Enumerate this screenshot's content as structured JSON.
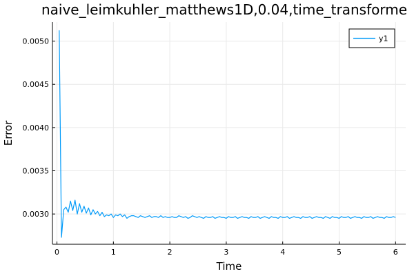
{
  "chart_data": {
    "type": "line",
    "title": "naive_leimkuhler_matthews1D,0.04,time_transforme",
    "xlabel": "Time",
    "ylabel": "Error",
    "xlim": [
      -0.08,
      6.18
    ],
    "ylim": [
      0.00265,
      0.00522
    ],
    "xticks": [
      0,
      1,
      2,
      3,
      4,
      5,
      6
    ],
    "xtick_labels": [
      "0",
      "1",
      "2",
      "3",
      "4",
      "5",
      "6"
    ],
    "yticks": [
      0.003,
      0.0035,
      0.004,
      0.0045,
      0.005
    ],
    "ytick_labels": [
      "0.0030",
      "0.0035",
      "0.0040",
      "0.0045",
      "0.0050"
    ],
    "grid": true,
    "legend": "top-right",
    "series": [
      {
        "name": "y1",
        "color": "#009af9",
        "x": [
          0.04,
          0.08,
          0.12,
          0.16,
          0.2,
          0.24,
          0.28,
          0.32,
          0.36,
          0.4,
          0.44,
          0.48,
          0.52,
          0.56,
          0.6,
          0.64,
          0.68,
          0.72,
          0.76,
          0.8,
          0.84,
          0.88,
          0.92,
          0.96,
          1.0,
          1.04,
          1.08,
          1.12,
          1.16,
          1.2,
          1.24,
          1.28,
          1.32,
          1.36,
          1.4,
          1.44,
          1.48,
          1.52,
          1.56,
          1.6,
          1.64,
          1.68,
          1.72,
          1.76,
          1.8,
          1.84,
          1.88,
          1.92,
          1.96,
          2.0,
          2.04,
          2.08,
          2.12,
          2.16,
          2.2,
          2.24,
          2.28,
          2.32,
          2.36,
          2.4,
          2.44,
          2.48,
          2.52,
          2.56,
          2.6,
          2.64,
          2.68,
          2.72,
          2.76,
          2.8,
          2.84,
          2.88,
          2.92,
          2.96,
          3.0,
          3.04,
          3.08,
          3.12,
          3.16,
          3.2,
          3.24,
          3.28,
          3.32,
          3.36,
          3.4,
          3.44,
          3.48,
          3.52,
          3.56,
          3.6,
          3.64,
          3.68,
          3.72,
          3.76,
          3.8,
          3.84,
          3.88,
          3.92,
          3.96,
          4.0,
          4.04,
          4.08,
          4.12,
          4.16,
          4.2,
          4.24,
          4.28,
          4.32,
          4.36,
          4.4,
          4.44,
          4.48,
          4.52,
          4.56,
          4.6,
          4.64,
          4.68,
          4.72,
          4.76,
          4.8,
          4.84,
          4.88,
          4.92,
          4.96,
          5.0,
          5.04,
          5.08,
          5.12,
          5.16,
          5.2,
          5.24,
          5.28,
          5.32,
          5.36,
          5.4,
          5.44,
          5.48,
          5.52,
          5.56,
          5.6,
          5.64,
          5.68,
          5.72,
          5.76,
          5.8,
          5.84,
          5.88,
          5.92,
          5.96,
          6.0
        ],
        "y": [
          0.005125,
          0.00273,
          0.00305,
          0.00308,
          0.00302,
          0.00315,
          0.00304,
          0.00316,
          0.003,
          0.00312,
          0.00302,
          0.00309,
          0.00301,
          0.00307,
          0.00299,
          0.00305,
          0.003,
          0.00303,
          0.00298,
          0.00302,
          0.00297,
          0.00299,
          0.00298,
          0.003,
          0.00296,
          0.00299,
          0.00298,
          0.003,
          0.00297,
          0.00299,
          0.00295,
          0.00297,
          0.00298,
          0.00298,
          0.00297,
          0.00296,
          0.00298,
          0.00297,
          0.00296,
          0.00297,
          0.00298,
          0.00296,
          0.00297,
          0.00297,
          0.00296,
          0.00298,
          0.00296,
          0.00297,
          0.00296,
          0.00296,
          0.00297,
          0.00296,
          0.00296,
          0.00298,
          0.00297,
          0.00296,
          0.00297,
          0.00295,
          0.00296,
          0.00298,
          0.00297,
          0.00296,
          0.00297,
          0.00296,
          0.00295,
          0.00297,
          0.00296,
          0.00296,
          0.00297,
          0.00295,
          0.00296,
          0.00297,
          0.00296,
          0.00296,
          0.00295,
          0.00297,
          0.00296,
          0.00296,
          0.00297,
          0.00295,
          0.00296,
          0.00297,
          0.00296,
          0.00296,
          0.00295,
          0.00297,
          0.00296,
          0.00296,
          0.00297,
          0.00295,
          0.00296,
          0.00297,
          0.00296,
          0.00295,
          0.00297,
          0.00296,
          0.00296,
          0.00295,
          0.00297,
          0.00296,
          0.00296,
          0.00297,
          0.00295,
          0.00296,
          0.00297,
          0.00296,
          0.00296,
          0.00295,
          0.00297,
          0.00296,
          0.00296,
          0.00297,
          0.00295,
          0.00296,
          0.00297,
          0.00296,
          0.00296,
          0.00295,
          0.00297,
          0.00296,
          0.00295,
          0.00297,
          0.00296,
          0.00296,
          0.00295,
          0.00297,
          0.00296,
          0.00296,
          0.00297,
          0.00295,
          0.00296,
          0.00297,
          0.00296,
          0.00296,
          0.00295,
          0.00297,
          0.00296,
          0.00296,
          0.00297,
          0.00295,
          0.00296,
          0.00297,
          0.00296,
          0.00296,
          0.00295,
          0.00297,
          0.00296,
          0.00296,
          0.00297,
          0.00296
        ]
      }
    ]
  }
}
